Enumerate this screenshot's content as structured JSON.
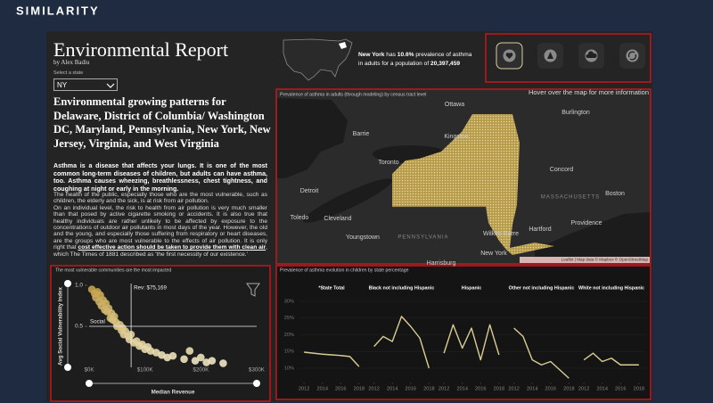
{
  "header": {
    "brand": "SIMILARITY"
  },
  "report": {
    "title": "Environmental Report",
    "author": "by Alex Badiu",
    "select_label": "Select a state",
    "selected_state": "NY",
    "heading": "Environmental growing patterns for Delaware, District of Columbia/ Washington DC, Maryland, Pennsylvania, New York, New Jersey, Virginia, and West Virginia",
    "intro": "Asthma is a disease that affects your lungs. It is one of the most common long-term diseases of children, but adults can have asthma, too. Asthma causes wheezing, breathlessness, chest tightness, and coughing at night or early in the morning.",
    "body": [
      "The health of the public, especially those who are the most vulnerable, such as children, the elderly and the sick, is at risk from air pollution.",
      "On an individual level, the risk to health from air pollution is very much smaller than that posed by active cigarette smoking or accidents. It is also true that healthy individuals are rather unlikely to be affected by exposure to the concentrations of outdoor air pollutants in most days of the year. However, the old and the young, and especially those suffering from respiratory or heart diseases, are the groups who are most vulnerable to the effects of air pollution. It is only right that ",
      "cost effective action should be taken to provide them with clean air",
      ", which The Times of 1881 described as 'the first necessity of our existence.'"
    ]
  },
  "summary": {
    "state": "New York",
    "text_1": "has",
    "prevalence": "10.6%",
    "text_2": "prevalence of asthma",
    "text_3": "in adults for a population of",
    "population": "20,397,459"
  },
  "map": {
    "title": "Prevalence of asthma in adults (through modeling) by census tract level",
    "hint": "Hover over the map for more information",
    "labels": [
      "Ottawa",
      "Barrie",
      "Kingston",
      "Burlington",
      "Toronto",
      "Concord",
      "Detroit",
      "MASSACHUSETTS",
      "Boston",
      "Toledo",
      "Cleveland",
      "Providence",
      "Hartford",
      "Youngstown",
      "PENNSYLVANIA",
      "Wilkes-Barre",
      "New York",
      "Harrisburg"
    ],
    "attribution": "Leaflet | Map data © Mapbox © OpenStreetMap"
  },
  "chart_data": [
    {
      "type": "scatter",
      "title": "The most vulnerable communities are the most impacted",
      "x_label": "Median Revenue",
      "y_label": "Avg Social Vulnerability Index",
      "x": [
        5000,
        10000,
        12000,
        15000,
        18000,
        20000,
        22000,
        25000,
        28000,
        30000,
        32000,
        35000,
        38000,
        40000,
        42000,
        45000,
        48000,
        50000,
        55000,
        58000,
        60000,
        62000,
        65000,
        70000,
        72000,
        75000,
        80000,
        85000,
        90000,
        95000,
        100000,
        105000,
        110000,
        120000,
        130000,
        140000,
        150000,
        170000,
        190000,
        210000,
        180000,
        200000,
        220000,
        240000
      ],
      "y": [
        0.95,
        0.9,
        0.85,
        0.92,
        0.8,
        0.88,
        0.75,
        0.82,
        0.7,
        0.78,
        0.68,
        0.72,
        0.6,
        0.66,
        0.58,
        0.62,
        0.55,
        0.5,
        0.52,
        0.45,
        0.48,
        0.4,
        0.44,
        0.38,
        0.34,
        0.4,
        0.3,
        0.32,
        0.26,
        0.28,
        0.22,
        0.25,
        0.2,
        0.18,
        0.15,
        0.12,
        0.14,
        0.1,
        0.08,
        0.06,
        0.2,
        0.12,
        0.08,
        0.05
      ],
      "colors": [
        "#f2ebcb",
        "#c39f45"
      ],
      "xlim": [
        0,
        300000
      ],
      "ylim": [
        0,
        1
      ],
      "xticks": [
        {
          "value": 0,
          "label": "$0K"
        },
        {
          "value": 100000,
          "label": "$100K"
        },
        {
          "value": 200000,
          "label": "$200K"
        },
        {
          "value": 300000,
          "label": "$300K"
        }
      ],
      "yticks": [
        {
          "value": 1,
          "label": "1.0"
        },
        0.5
      ],
      "reference_lines": [
        {
          "axis": "x",
          "value": 75169,
          "label": "Rev: $75,169"
        },
        {
          "axis": "y",
          "value": 0.5,
          "label": "Social"
        }
      ]
    },
    {
      "type": "line",
      "title": "Prevalence of asthma evolution in children by state percentage",
      "x": [
        2012,
        2013,
        2014,
        2015,
        2016,
        2017,
        2018
      ],
      "xlim": [
        2011.5,
        2018.5
      ],
      "xticks": [
        2012,
        2014,
        2016,
        2018
      ],
      "ylim": [
        6,
        32
      ],
      "yticks": [
        {
          "value": 30,
          "label": "30%"
        },
        {
          "value": 25,
          "label": "25%"
        },
        {
          "value": 20,
          "label": "20%"
        },
        {
          "value": 15,
          "label": "15%"
        },
        {
          "value": 10,
          "label": "10%"
        }
      ],
      "series": [
        {
          "name": "*State Total",
          "color": "#d9cd93",
          "values": [
            14.8,
            14.5,
            14.2,
            14.0,
            13.8,
            13.5,
            10.5
          ]
        },
        {
          "name": "Black not including Hispanic",
          "color": "#d9cd93",
          "values": [
            16.5,
            19.5,
            18,
            25.5,
            22.5,
            19,
            10
          ]
        },
        {
          "name": "Hispanic",
          "color": "#d9cd93",
          "values": [
            14.5,
            23,
            16,
            22,
            12.5,
            23,
            14
          ]
        },
        {
          "name": "Other not including Hispanic",
          "color": "#d9cd93",
          "values": [
            22,
            19.5,
            12.5,
            11,
            12,
            9.5,
            7
          ]
        },
        {
          "name": "White not including Hispanic",
          "color": "#d9cd93",
          "values": [
            12.5,
            14.5,
            12,
            13,
            11,
            11,
            11
          ]
        }
      ]
    }
  ]
}
